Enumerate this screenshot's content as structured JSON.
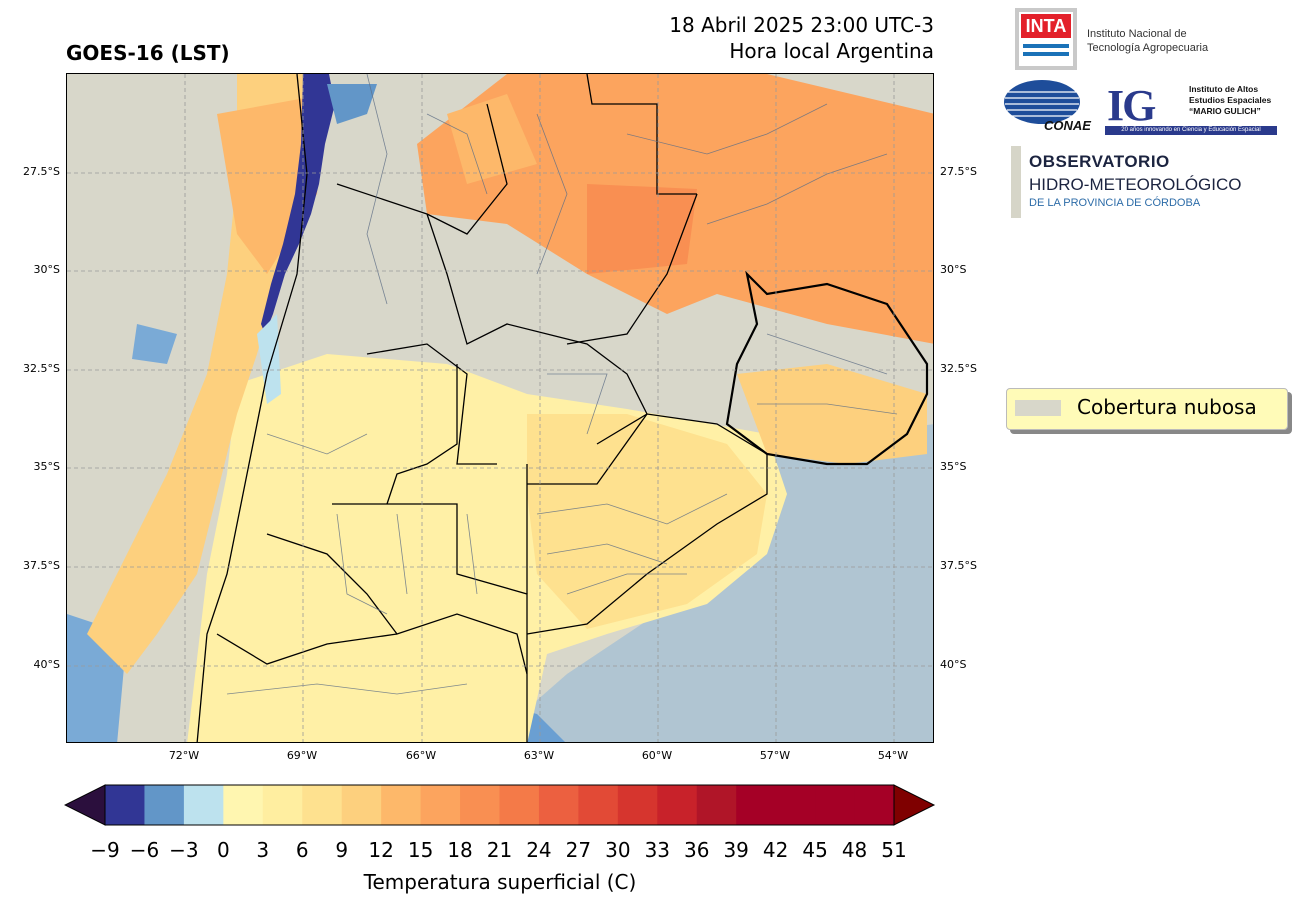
{
  "header": {
    "title": "GOES-16 (LST)",
    "date_line": "18 Abril 2025 23:00 UTC-3",
    "local_time_line": "Hora local Argentina"
  },
  "map": {
    "lat_ticks": [
      "27.5°S",
      "30°S",
      "32.5°S",
      "35°S",
      "37.5°S",
      "40°S"
    ],
    "lon_ticks": [
      "72°W",
      "69°W",
      "66°W",
      "63°W",
      "60°W",
      "57°W",
      "54°W"
    ]
  },
  "legend": {
    "label": "Cobertura nubosa",
    "color": "#d8d7ca"
  },
  "colorbar": {
    "label": "Temperatura superficial (C)",
    "ticks": [
      "−9",
      "−6",
      "−3",
      "0",
      "3",
      "6",
      "9",
      "12",
      "15",
      "18",
      "21",
      "24",
      "27",
      "30",
      "33",
      "36",
      "39",
      "42",
      "45",
      "48",
      "51"
    ],
    "colors": [
      "#313695",
      "#6296c8",
      "#bde2ee",
      "#fff6b0",
      "#ffeea0",
      "#fee18f",
      "#fdd07e",
      "#fdb86a",
      "#fca45e",
      "#f98f52",
      "#f47a48",
      "#ec6040",
      "#e24a36",
      "#d6352e",
      "#c8222a",
      "#b01528",
      "#a50026"
    ],
    "under_color": "#2b0f3d",
    "over_color": "#7f0000"
  },
  "logos": {
    "inta_mark": "INTA",
    "inta_name_1": "Instituto Nacional de",
    "inta_name_2": "Tecnología Agropecuaria",
    "conae_mark": "CONAE",
    "ig_mark": "IG",
    "ig_name_1": "Instituto de Altos",
    "ig_name_2": "Estudios Espaciales",
    "ig_name_3": "“MARIO GULICH”",
    "ig_tagline": "20 años innovando en Ciencia y Educación Espacial",
    "obs_1": "OBSERVATORIO",
    "obs_2": "HIDRO-METEOROLÓGICO",
    "obs_3": "DE LA PROVINCIA DE CÓRDOBA"
  }
}
